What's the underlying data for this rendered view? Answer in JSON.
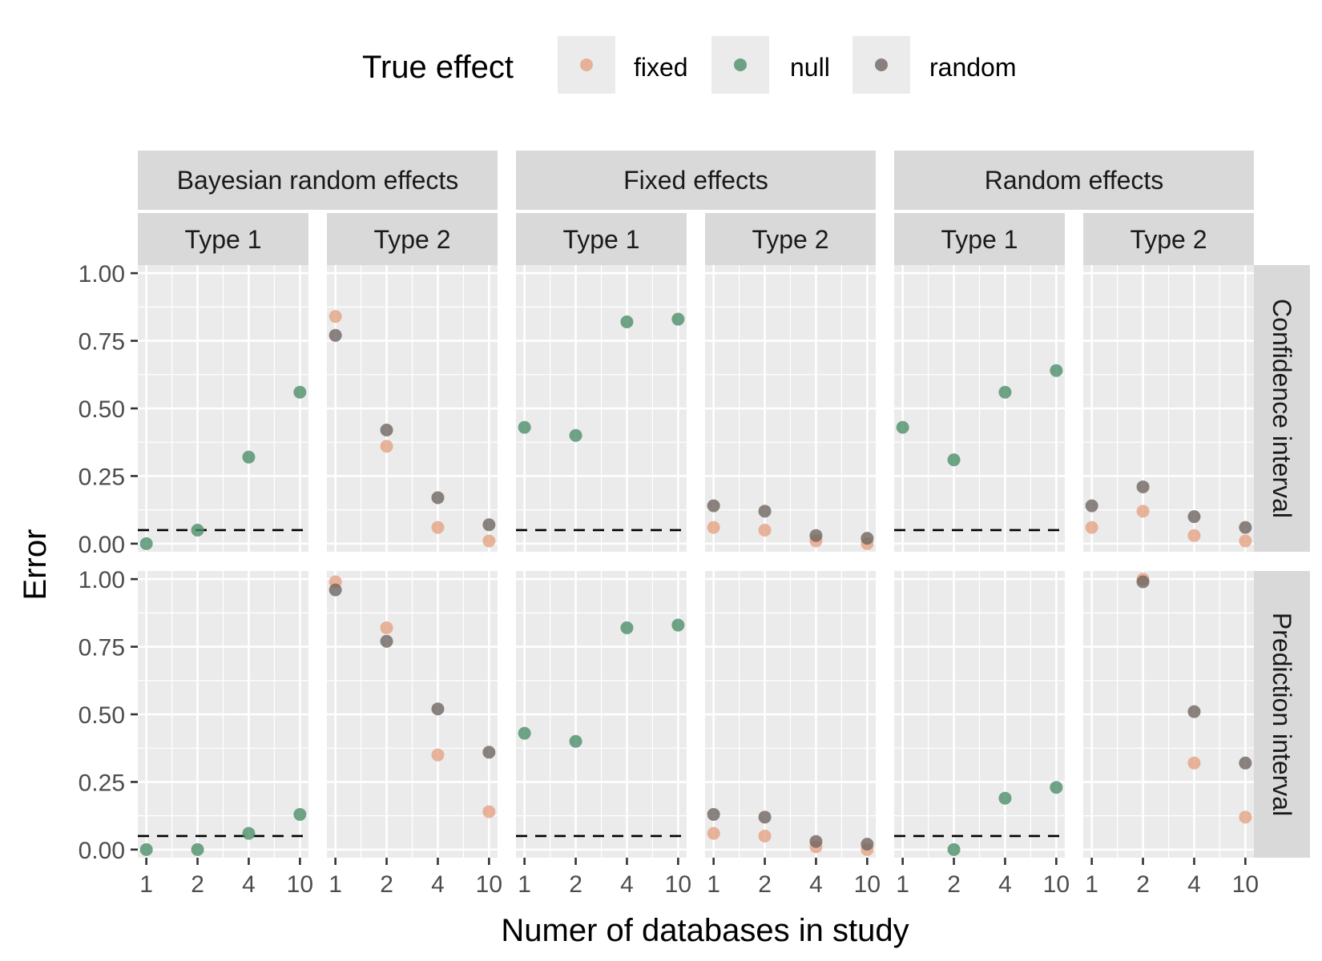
{
  "chart_data": {
    "type": "scatter",
    "xlabel": "Numer of databases in study",
    "ylabel": "Error",
    "x_ticks": [
      "1",
      "2",
      "4",
      "10"
    ],
    "y_ticks": [
      "0.00",
      "0.25",
      "0.50",
      "0.75",
      "1.00"
    ],
    "ylim": [
      -0.03,
      1.03
    ],
    "reference_line": 0.05,
    "legend": {
      "title": "True effect",
      "placement": "top",
      "entries": [
        {
          "key": "fixed",
          "label": "fixed",
          "color": "#e3a283"
        },
        {
          "key": "null",
          "label": "null",
          "color": "#4e8f6a"
        },
        {
          "key": "random",
          "label": "random",
          "color": "#6f6560"
        }
      ]
    },
    "methods": [
      "Bayesian random effects",
      "Fixed effects",
      "Random effects"
    ],
    "error_types": [
      "Type 1",
      "Type 2"
    ],
    "interval_types": [
      "Confidence interval",
      "Prediction interval"
    ],
    "panels": [
      {
        "row": 0,
        "method": 0,
        "etype": 0,
        "series": {
          "null": [
            0.0,
            0.05,
            0.32,
            0.56
          ]
        }
      },
      {
        "row": 0,
        "method": 0,
        "etype": 1,
        "series": {
          "fixed": [
            0.84,
            0.36,
            0.06,
            0.01
          ],
          "random": [
            0.77,
            0.42,
            0.17,
            0.07
          ]
        }
      },
      {
        "row": 0,
        "method": 1,
        "etype": 0,
        "series": {
          "null": [
            0.43,
            0.4,
            0.82,
            0.83
          ]
        }
      },
      {
        "row": 0,
        "method": 1,
        "etype": 1,
        "series": {
          "fixed": [
            0.06,
            0.05,
            0.01,
            0.0
          ],
          "random": [
            0.14,
            0.12,
            0.03,
            0.02
          ]
        }
      },
      {
        "row": 0,
        "method": 2,
        "etype": 0,
        "series": {
          "null": [
            0.43,
            0.31,
            0.56,
            0.64
          ]
        }
      },
      {
        "row": 0,
        "method": 2,
        "etype": 1,
        "series": {
          "fixed": [
            0.06,
            0.12,
            0.03,
            0.01
          ],
          "random": [
            0.14,
            0.21,
            0.1,
            0.06
          ]
        }
      },
      {
        "row": 1,
        "method": 0,
        "etype": 0,
        "series": {
          "null": [
            0.0,
            0.0,
            0.06,
            0.13
          ]
        }
      },
      {
        "row": 1,
        "method": 0,
        "etype": 1,
        "series": {
          "fixed": [
            0.99,
            0.82,
            0.35,
            0.14
          ],
          "random": [
            0.96,
            0.77,
            0.52,
            0.36
          ]
        }
      },
      {
        "row": 1,
        "method": 1,
        "etype": 0,
        "series": {
          "null": [
            0.43,
            0.4,
            0.82,
            0.83
          ]
        }
      },
      {
        "row": 1,
        "method": 1,
        "etype": 1,
        "series": {
          "fixed": [
            0.06,
            0.05,
            0.01,
            0.0
          ],
          "random": [
            0.13,
            0.12,
            0.03,
            0.02
          ]
        }
      },
      {
        "row": 1,
        "method": 2,
        "etype": 0,
        "series": {
          "null": [
            null,
            0.0,
            0.19,
            0.23
          ]
        }
      },
      {
        "row": 1,
        "method": 2,
        "etype": 1,
        "series": {
          "fixed": [
            null,
            1.0,
            0.32,
            0.12
          ],
          "random": [
            null,
            0.99,
            0.51,
            0.32
          ]
        }
      }
    ]
  }
}
